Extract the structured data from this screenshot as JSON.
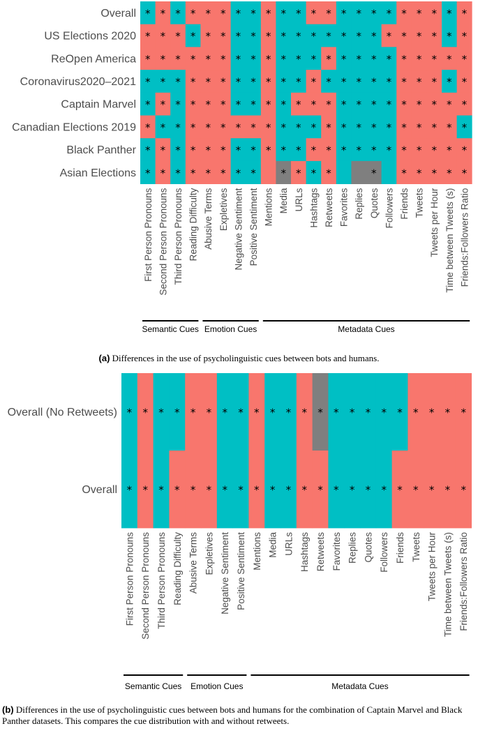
{
  "colors": {
    "true": "#00bfc4",
    "false": "#f8766d",
    "na": "#7f7f7f"
  },
  "chart_data": [
    {
      "type": "heatmap",
      "panel": "a",
      "columns": [
        "First Person Pronouns",
        "Second Person Pronouns",
        "Third Person Pronouns",
        "Reading Difficulty",
        "Abusive Terms",
        "Expletives",
        "Negative Sentiment",
        "Positive Sentiment",
        "Mentions",
        "Media",
        "URLs",
        "Hashtags",
        "Retweets",
        "Favorites",
        "Replies",
        "Quotes",
        "Followers",
        "Friends",
        "Tweets",
        "Tweets per Hour",
        "Time between Tweets (s)",
        "Friends:Followers Ratio"
      ],
      "rows": [
        "Overall",
        "US Elections 2020",
        "ReOpen America",
        "Coronavirus2020–2021",
        "Captain Marvel",
        "Canadian Elections 2019",
        "Black Panther",
        "Asian Elections"
      ],
      "cells": [
        "TFTFFFTTFTTFFTTTTFFFTF",
        "FFFTFFTTFTTTTTTTFFFFTF",
        "FFFFFFTTFTTTFTTTTFFFFF",
        "TTTFFFTTFTTFTTTTTFFFTF",
        "TFTFFFTTFTFFFTTTTFFFFF",
        "FTTFFFFFFTTTFTTTTFFFFT",
        "TFTFFFTTFTTFFTTTTFFFFF",
        "TFTFFFTTFNFTFTNNTFFFFF"
      ],
      "sig": [
        "1111111111111111111111",
        "1111111111111111111111",
        "1111111111111111111111",
        "1111111111111111111111",
        "1111111111111111111111",
        "1111111111111111111111",
        "1111111111111111111111",
        "1111111101111001011111"
      ],
      "groups": [
        {
          "label": "Semantic Cues",
          "from": 0,
          "to": 3
        },
        {
          "label": "Emotion Cues",
          "from": 4,
          "to": 7
        },
        {
          "label": "Metadata Cues",
          "from": 8,
          "to": 21
        }
      ],
      "star": "*",
      "title": "",
      "caption_tag": "(a)",
      "caption_text": "Differences in the use of psycholinguistic cues between bots and humans."
    },
    {
      "type": "heatmap",
      "panel": "b",
      "columns": [
        "First Person Pronouns",
        "Second Person Pronouns",
        "Third Person Pronouns",
        "Reading Difficulty",
        "Abusive Terms",
        "Expletives",
        "Negative Sentiment",
        "Positive Sentiment",
        "Mentions",
        "Media",
        "URLs",
        "Hashtags",
        "Retweets",
        "Favorites",
        "Replies",
        "Quotes",
        "Followers",
        "Friends",
        "Tweets",
        "Tweets per Hour",
        "Time between Tweets (s)",
        "Friends:Followers Ratio"
      ],
      "rows": [
        "Overall (No Retweets)",
        "Overall"
      ],
      "cells": [
        "TFTTFFTTFTTFNTTTTTFFFF",
        "TFTFFFTTFTTFFTTTTFFFFF"
      ],
      "sig": [
        "1111111111111111111111",
        "1111111111111111111111"
      ],
      "groups": [
        {
          "label": "Semantic Cues",
          "from": 0,
          "to": 3
        },
        {
          "label": "Emotion Cues",
          "from": 4,
          "to": 7
        },
        {
          "label": "Metadata Cues",
          "from": 8,
          "to": 21
        }
      ],
      "star": "*",
      "title": "",
      "caption_tag": "(b)",
      "caption_text": "Differences in the use of psycholinguistic cues between bots and humans for the combination of Captain Marvel and Black Panther datasets. This compares the cue distribution with and without retweets."
    }
  ]
}
